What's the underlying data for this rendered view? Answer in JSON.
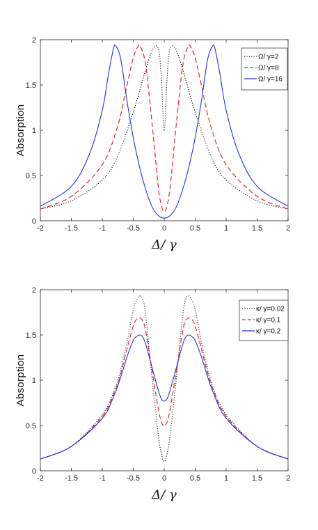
{
  "chart_data": [
    {
      "type": "line",
      "title": "",
      "xlabel": "Δ/ γ",
      "ylabel": "Absorption",
      "xlim": [
        -2,
        2
      ],
      "ylim": [
        0,
        2
      ],
      "xticks": [
        "-2",
        "-1.5",
        "-1",
        "-0.5",
        "0",
        "0.5",
        "1",
        "1.5",
        "2"
      ],
      "yticks": [
        "0",
        "0.5",
        "1",
        "1.5",
        "2"
      ],
      "grid": false,
      "legend_position": "top-right",
      "series": [
        {
          "name": "Ω/ γ=2",
          "color": "#222222",
          "style": "dotted",
          "x": [
            -2.0,
            -1.5,
            -1.0,
            -0.75,
            -0.5,
            -0.35,
            -0.25,
            -0.18,
            -0.12,
            -0.08,
            -0.05,
            -0.03,
            -0.015,
            0.0,
            0.015,
            0.03,
            0.05,
            0.08,
            0.12,
            0.18,
            0.25,
            0.35,
            0.5,
            0.75,
            1.0,
            1.5,
            2.0
          ],
          "y": [
            0.13,
            0.22,
            0.45,
            0.72,
            1.2,
            1.55,
            1.78,
            1.9,
            1.93,
            1.85,
            1.62,
            1.35,
            1.1,
            0.99,
            1.1,
            1.35,
            1.62,
            1.85,
            1.93,
            1.9,
            1.78,
            1.55,
            1.2,
            0.72,
            0.45,
            0.22,
            0.13
          ]
        },
        {
          "name": "Ω/ γ=8",
          "color": "#e8272a",
          "style": "dashed",
          "x": [
            -2.0,
            -1.5,
            -1.0,
            -0.75,
            -0.6,
            -0.5,
            -0.42,
            -0.38,
            -0.3,
            -0.2,
            -0.1,
            -0.05,
            0.0,
            0.05,
            0.1,
            0.2,
            0.3,
            0.38,
            0.42,
            0.5,
            0.6,
            0.75,
            1.0,
            1.5,
            2.0
          ],
          "y": [
            0.13,
            0.27,
            0.62,
            1.05,
            1.5,
            1.8,
            1.93,
            1.92,
            1.72,
            1.1,
            0.4,
            0.18,
            0.1,
            0.18,
            0.4,
            1.1,
            1.72,
            1.92,
            1.93,
            1.8,
            1.5,
            1.05,
            0.62,
            0.27,
            0.13
          ]
        },
        {
          "name": "Ω/ γ=16",
          "color": "#2233d6",
          "style": "solid",
          "x": [
            -2.0,
            -1.5,
            -1.2,
            -1.0,
            -0.9,
            -0.82,
            -0.78,
            -0.7,
            -0.6,
            -0.5,
            -0.4,
            -0.3,
            -0.2,
            -0.1,
            0.0,
            0.1,
            0.2,
            0.3,
            0.4,
            0.5,
            0.6,
            0.7,
            0.78,
            0.82,
            0.9,
            1.0,
            1.2,
            1.5,
            2.0
          ],
          "y": [
            0.16,
            0.38,
            0.75,
            1.22,
            1.62,
            1.9,
            1.93,
            1.78,
            1.32,
            0.92,
            0.6,
            0.35,
            0.16,
            0.06,
            0.03,
            0.06,
            0.16,
            0.35,
            0.6,
            0.92,
            1.32,
            1.78,
            1.93,
            1.9,
            1.62,
            1.22,
            0.75,
            0.38,
            0.16
          ]
        }
      ]
    },
    {
      "type": "line",
      "title": "",
      "xlabel": "Δ/ γ",
      "ylabel": "Absorption",
      "xlim": [
        -2,
        2
      ],
      "ylim": [
        0,
        2
      ],
      "xticks": [
        "-2",
        "-1.5",
        "-1",
        "-0.5",
        "0",
        "0.5",
        "1",
        "1.5",
        "2"
      ],
      "yticks": [
        "0",
        "0.5",
        "1",
        "1.5",
        "2"
      ],
      "grid": false,
      "legend_position": "top-right",
      "series": [
        {
          "name": "κ/ γ=0.02",
          "color": "#222222",
          "style": "dotted",
          "x": [
            -2.0,
            -1.5,
            -1.0,
            -0.8,
            -0.7,
            -0.6,
            -0.5,
            -0.45,
            -0.4,
            -0.35,
            -0.3,
            -0.2,
            -0.1,
            -0.05,
            0.0,
            0.05,
            0.1,
            0.2,
            0.3,
            0.35,
            0.4,
            0.45,
            0.5,
            0.6,
            0.7,
            0.8,
            1.0,
            1.5,
            2.0
          ],
          "y": [
            0.13,
            0.27,
            0.62,
            0.9,
            1.12,
            1.42,
            1.78,
            1.88,
            1.93,
            1.9,
            1.72,
            1.05,
            0.42,
            0.2,
            0.1,
            0.2,
            0.42,
            1.05,
            1.72,
            1.9,
            1.93,
            1.88,
            1.78,
            1.42,
            1.12,
            0.9,
            0.62,
            0.27,
            0.13
          ]
        },
        {
          "name": "κ/ γ=0.1",
          "color": "#e8272a",
          "style": "dashed",
          "x": [
            -2.0,
            -1.5,
            -1.0,
            -0.8,
            -0.7,
            -0.6,
            -0.5,
            -0.45,
            -0.4,
            -0.35,
            -0.3,
            -0.2,
            -0.1,
            -0.05,
            0.0,
            0.05,
            0.1,
            0.2,
            0.3,
            0.35,
            0.4,
            0.45,
            0.5,
            0.6,
            0.7,
            0.8,
            1.0,
            1.5,
            2.0
          ],
          "y": [
            0.13,
            0.27,
            0.6,
            0.88,
            1.08,
            1.35,
            1.6,
            1.67,
            1.69,
            1.66,
            1.55,
            1.12,
            0.7,
            0.55,
            0.49,
            0.55,
            0.7,
            1.12,
            1.55,
            1.66,
            1.69,
            1.67,
            1.6,
            1.35,
            1.08,
            0.88,
            0.6,
            0.27,
            0.13
          ]
        },
        {
          "name": "κ/ γ=0.2",
          "color": "#2233d6",
          "style": "solid",
          "x": [
            -2.0,
            -1.5,
            -1.0,
            -0.8,
            -0.7,
            -0.6,
            -0.5,
            -0.45,
            -0.4,
            -0.35,
            -0.3,
            -0.2,
            -0.1,
            -0.05,
            0.0,
            0.05,
            0.1,
            0.2,
            0.3,
            0.35,
            0.4,
            0.45,
            0.5,
            0.6,
            0.7,
            0.8,
            1.0,
            1.5,
            2.0
          ],
          "y": [
            0.13,
            0.27,
            0.58,
            0.85,
            1.04,
            1.26,
            1.44,
            1.48,
            1.5,
            1.48,
            1.4,
            1.15,
            0.9,
            0.8,
            0.77,
            0.8,
            0.9,
            1.15,
            1.4,
            1.48,
            1.5,
            1.48,
            1.44,
            1.26,
            1.04,
            0.85,
            0.58,
            0.27,
            0.13
          ]
        }
      ]
    }
  ]
}
